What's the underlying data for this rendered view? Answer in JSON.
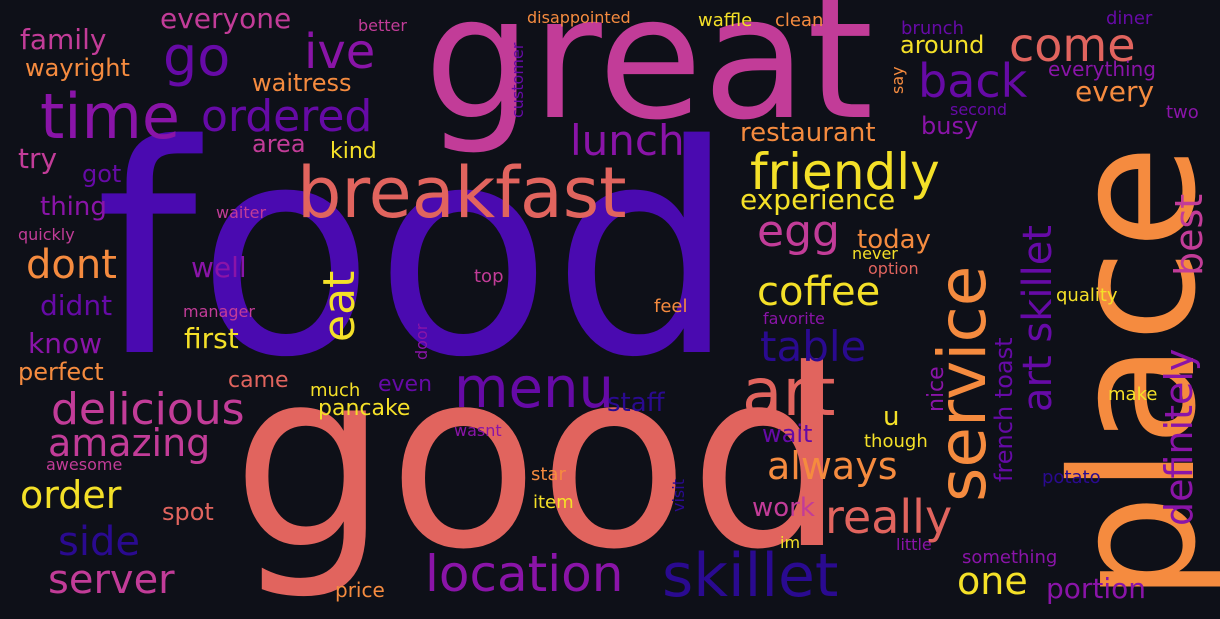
{
  "colors": {
    "background": "#0e1018",
    "palette": [
      "#4a0ab0",
      "#c23c98",
      "#e1645e",
      "#f58b3f",
      "#f4e028",
      "#8a14a8",
      "#2a0a90",
      "#660aa6"
    ]
  },
  "words": [
    {
      "text": "food",
      "color": "#4a0ab0"
    },
    {
      "text": "good",
      "color": "#e1645e"
    },
    {
      "text": "great",
      "color": "#c23c98"
    },
    {
      "text": "place",
      "color": "#f58b3f"
    },
    {
      "text": "breakfast",
      "color": "#e1645e"
    },
    {
      "text": "time",
      "color": "#8a14a8"
    },
    {
      "text": "service",
      "color": "#f58b3f"
    },
    {
      "text": "skillet",
      "color": "#2a0a90"
    },
    {
      "text": "art",
      "color": "#e1645e"
    },
    {
      "text": "menu",
      "color": "#660aa6"
    },
    {
      "text": "location",
      "color": "#8a14a8"
    },
    {
      "text": "friendly",
      "color": "#f4e028"
    },
    {
      "text": "art skillet",
      "color": "#660aa6"
    },
    {
      "text": "ordered",
      "color": "#660aa6"
    },
    {
      "text": "go",
      "color": "#660aa6"
    },
    {
      "text": "ive",
      "color": "#8a14a8"
    },
    {
      "text": "come",
      "color": "#e1645e"
    },
    {
      "text": "back",
      "color": "#660aa6"
    },
    {
      "text": "lunch",
      "color": "#8a14a8"
    },
    {
      "text": "delicious",
      "color": "#c23c98"
    },
    {
      "text": "amazing",
      "color": "#c23c98"
    },
    {
      "text": "server",
      "color": "#c23c98"
    },
    {
      "text": "order",
      "color": "#f4e028"
    },
    {
      "text": "side",
      "color": "#2a0a90"
    },
    {
      "text": "dont",
      "color": "#f58b3f"
    },
    {
      "text": "eat",
      "color": "#f4e028"
    },
    {
      "text": "egg",
      "color": "#c23c98"
    },
    {
      "text": "coffee",
      "color": "#f4e028"
    },
    {
      "text": "table",
      "color": "#2a0a90"
    },
    {
      "text": "really",
      "color": "#e1645e"
    },
    {
      "text": "always",
      "color": "#f58b3f"
    },
    {
      "text": "one",
      "color": "#f4e028"
    },
    {
      "text": "definitely",
      "color": "#8a14a8"
    },
    {
      "text": "best",
      "color": "#c23c98"
    },
    {
      "text": "french toast",
      "color": "#660aa6"
    },
    {
      "text": "experience",
      "color": "#f4e028"
    },
    {
      "text": "restaurant",
      "color": "#f58b3f"
    },
    {
      "text": "every",
      "color": "#f58b3f"
    },
    {
      "text": "busy",
      "color": "#8a14a8"
    },
    {
      "text": "around",
      "color": "#f4e028"
    },
    {
      "text": "everyone",
      "color": "#c23c98"
    },
    {
      "text": "family",
      "color": "#c23c98"
    },
    {
      "text": "wayright",
      "color": "#f58b3f"
    },
    {
      "text": "waitress",
      "color": "#f58b3f"
    },
    {
      "text": "area",
      "color": "#c23c98"
    },
    {
      "text": "kind",
      "color": "#f4e028"
    },
    {
      "text": "try",
      "color": "#c23c98"
    },
    {
      "text": "got",
      "color": "#660aa6"
    },
    {
      "text": "thing",
      "color": "#8a14a8"
    },
    {
      "text": "well",
      "color": "#8a14a8"
    },
    {
      "text": "didnt",
      "color": "#660aa6"
    },
    {
      "text": "know",
      "color": "#8a14a8"
    },
    {
      "text": "perfect",
      "color": "#f58b3f"
    },
    {
      "text": "first",
      "color": "#f4e028"
    },
    {
      "text": "came",
      "color": "#e1645e"
    },
    {
      "text": "pancake",
      "color": "#f4e028"
    },
    {
      "text": "even",
      "color": "#660aa6"
    },
    {
      "text": "much",
      "color": "#f4e028"
    },
    {
      "text": "staff",
      "color": "#2a0a90"
    },
    {
      "text": "spot",
      "color": "#e1645e"
    },
    {
      "text": "price",
      "color": "#f58b3f"
    },
    {
      "text": "today",
      "color": "#f58b3f"
    },
    {
      "text": "wait",
      "color": "#660aa6"
    },
    {
      "text": "work",
      "color": "#c23c98"
    },
    {
      "text": "portion",
      "color": "#8a14a8"
    },
    {
      "text": "u",
      "color": "#f4e028"
    },
    {
      "text": "nice",
      "color": "#8a14a8"
    },
    {
      "text": "though",
      "color": "#f4e028"
    },
    {
      "text": "make",
      "color": "#f4e028"
    },
    {
      "text": "potato",
      "color": "#2a0a90"
    },
    {
      "text": "quality",
      "color": "#f4e028"
    },
    {
      "text": "everything",
      "color": "#8a14a8"
    },
    {
      "text": "two",
      "color": "#8a14a8"
    },
    {
      "text": "second",
      "color": "#660aa6"
    },
    {
      "text": "say",
      "color": "#f58b3f"
    },
    {
      "text": "brunch",
      "color": "#660aa6"
    },
    {
      "text": "diner",
      "color": "#660aa6"
    },
    {
      "text": "waffle",
      "color": "#f4e028"
    },
    {
      "text": "clean",
      "color": "#f58b3f"
    },
    {
      "text": "disappointed",
      "color": "#f58b3f"
    },
    {
      "text": "better",
      "color": "#c23c98"
    },
    {
      "text": "customer",
      "color": "#660aa6"
    },
    {
      "text": "waiter",
      "color": "#c23c98"
    },
    {
      "text": "quickly",
      "color": "#c23c98"
    },
    {
      "text": "top",
      "color": "#c23c98"
    },
    {
      "text": "manager",
      "color": "#c23c98"
    },
    {
      "text": "door",
      "color": "#8a14a8"
    },
    {
      "text": "feel",
      "color": "#f58b3f"
    },
    {
      "text": "never",
      "color": "#f4e028"
    },
    {
      "text": "option",
      "color": "#e1645e"
    },
    {
      "text": "favorite",
      "color": "#8a14a8"
    },
    {
      "text": "wasnt",
      "color": "#8a14a8"
    },
    {
      "text": "awesome",
      "color": "#c23c98"
    },
    {
      "text": "star",
      "color": "#f58b3f"
    },
    {
      "text": "item",
      "color": "#f4e028"
    },
    {
      "text": "visit",
      "color": "#2a0a90"
    },
    {
      "text": "im",
      "color": "#f4e028"
    },
    {
      "text": "little",
      "color": "#8a14a8"
    },
    {
      "text": "something",
      "color": "#8a14a8"
    }
  ]
}
